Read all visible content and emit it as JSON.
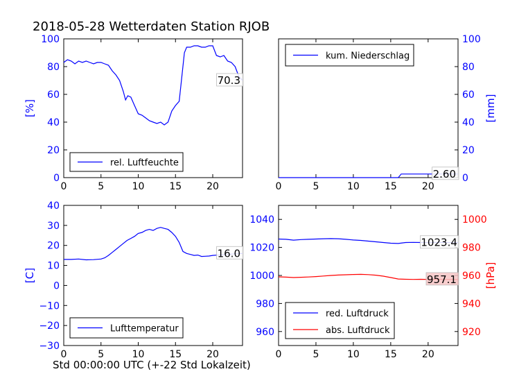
{
  "title": "2018-05-28 Wetterdaten Station RJOB",
  "xlabel_bottom": "Std 00:00:00 UTC (+-22 Std Lokalzeit)",
  "colors": {
    "blue": "#0000ff",
    "red": "#ff0000"
  },
  "chart_data": [
    {
      "type": "line",
      "ylabel": "[%]",
      "xlim": [
        0,
        24
      ],
      "ylim": [
        0,
        100
      ],
      "xticks": [
        "0",
        "5",
        "10",
        "15",
        "20"
      ],
      "yticks": [
        "0",
        "20",
        "40",
        "60",
        "80",
        "100"
      ],
      "legend": "bottom-left",
      "end_label": "70.3",
      "series": [
        {
          "name": "rel. Luftfeuchte",
          "color": "#0000ff",
          "x": [
            0,
            0.5,
            1,
            1.5,
            2,
            2.5,
            3,
            3.5,
            4,
            4.5,
            5,
            5.5,
            6,
            6.5,
            7,
            7.5,
            8,
            8.3,
            8.6,
            9,
            9.5,
            10,
            10.5,
            11,
            11.5,
            12,
            12.5,
            13,
            13.5,
            14,
            14.5,
            15,
            15.5,
            15.9,
            16.2,
            16.5,
            17,
            17.5,
            18,
            18.5,
            19,
            19.5,
            20,
            20.5,
            21,
            21.5,
            22,
            22.5,
            23,
            23.5,
            24
          ],
          "y": [
            83,
            85,
            84,
            82,
            84,
            83,
            84,
            83,
            82,
            83,
            83,
            82,
            81,
            77,
            74,
            70,
            62,
            56,
            59,
            58,
            52,
            46,
            45,
            43,
            41,
            40,
            39,
            40,
            38,
            40,
            48,
            52,
            55,
            75,
            90,
            94,
            94,
            95,
            95,
            94,
            94,
            95,
            95,
            88,
            87,
            88,
            84,
            83,
            80,
            73,
            70
          ]
        }
      ]
    },
    {
      "type": "line",
      "ylabel": "[mm]",
      "xlim": [
        0,
        24
      ],
      "ylim": [
        0,
        100
      ],
      "xticks": [
        "0",
        "5",
        "10",
        "15",
        "20"
      ],
      "yticks": [
        "0",
        "20",
        "40",
        "60",
        "80",
        "100"
      ],
      "legend": "top-left",
      "end_label": "2.60",
      "series": [
        {
          "name": "kum. Niederschlag",
          "color": "#0000ff",
          "x": [
            0,
            16,
            16.4,
            24
          ],
          "y": [
            0,
            0,
            2.6,
            2.6
          ]
        }
      ]
    },
    {
      "type": "line",
      "ylabel": "[C]",
      "xlim": [
        0,
        24
      ],
      "ylim": [
        -30,
        40
      ],
      "xticks": [
        "0",
        "5",
        "10",
        "15",
        "20"
      ],
      "yticks": [
        "−30",
        "−20",
        "−10",
        "0",
        "10",
        "20",
        "30",
        "40"
      ],
      "legend": "bottom-left",
      "end_label": "16.0",
      "series": [
        {
          "name": "Lufttemperatur",
          "color": "#0000ff",
          "x": [
            0,
            1,
            2,
            3,
            4,
            5,
            5.5,
            6,
            6.5,
            7,
            7.5,
            8,
            8.5,
            9,
            9.5,
            10,
            10.5,
            11,
            11.5,
            12,
            12.5,
            13,
            13.5,
            14,
            14.5,
            15,
            15.5,
            16,
            16.5,
            17,
            17.5,
            18,
            18.5,
            19,
            19.5,
            20,
            21,
            22,
            23,
            24
          ],
          "y": [
            13,
            13,
            13.2,
            12.8,
            12.9,
            13.2,
            13.8,
            15,
            16.5,
            18,
            19.5,
            21,
            22.5,
            23.5,
            24.5,
            26,
            26.5,
            27.5,
            28,
            27.5,
            28.5,
            29,
            28.5,
            28,
            26.5,
            24.5,
            21.5,
            17,
            16,
            15.5,
            15,
            15.2,
            14.5,
            14.6,
            14.7,
            15,
            15.3,
            15.5,
            15.8,
            16
          ]
        }
      ]
    },
    {
      "type": "line",
      "ylabel": "[hPa]",
      "xlim": [
        0,
        24
      ],
      "ylim": [
        950,
        1050
      ],
      "ylim_right": [
        910,
        1010
      ],
      "xticks": [
        "0",
        "5",
        "10",
        "15",
        "20"
      ],
      "yticks": [
        "960",
        "980",
        "1000",
        "1020",
        "1040"
      ],
      "yticks_right": [
        "920",
        "940",
        "960",
        "980",
        "1000"
      ],
      "legend": "bottom-left",
      "end_labels": [
        "1023.4",
        "957.1"
      ],
      "series": [
        {
          "name": "red. Luftdruck",
          "color": "#0000ff",
          "axis": "left",
          "x": [
            0,
            1,
            2,
            3,
            4,
            5,
            6,
            7,
            8,
            9,
            10,
            11,
            12,
            13,
            14,
            15,
            16,
            17,
            18,
            19,
            20,
            21,
            22,
            23,
            24
          ],
          "y": [
            1026,
            1025.8,
            1025.2,
            1025.6,
            1025.8,
            1026,
            1026.2,
            1026.3,
            1026.2,
            1025.8,
            1025.3,
            1025,
            1024.5,
            1024,
            1023.5,
            1023,
            1022.8,
            1023.5,
            1023.6,
            1023.5,
            1023.4,
            1023.5,
            1023.6,
            1023.4,
            1023.4
          ]
        },
        {
          "name": "abs. Luftdruck",
          "color": "#ff0000",
          "axis": "right",
          "x": [
            0,
            1,
            2,
            3,
            4,
            5,
            6,
            7,
            8,
            9,
            10,
            11,
            12,
            13,
            14,
            15,
            16,
            17,
            18,
            19,
            20,
            21,
            22,
            23,
            24
          ],
          "y": [
            959,
            958.8,
            958.5,
            958.7,
            958.9,
            959.2,
            959.6,
            960,
            960.3,
            960.5,
            960.7,
            960.8,
            960.6,
            960.2,
            959.5,
            958.5,
            957.5,
            957.3,
            957.2,
            957.3,
            957.2,
            957.3,
            957.2,
            957.1,
            957.1
          ]
        }
      ]
    }
  ]
}
